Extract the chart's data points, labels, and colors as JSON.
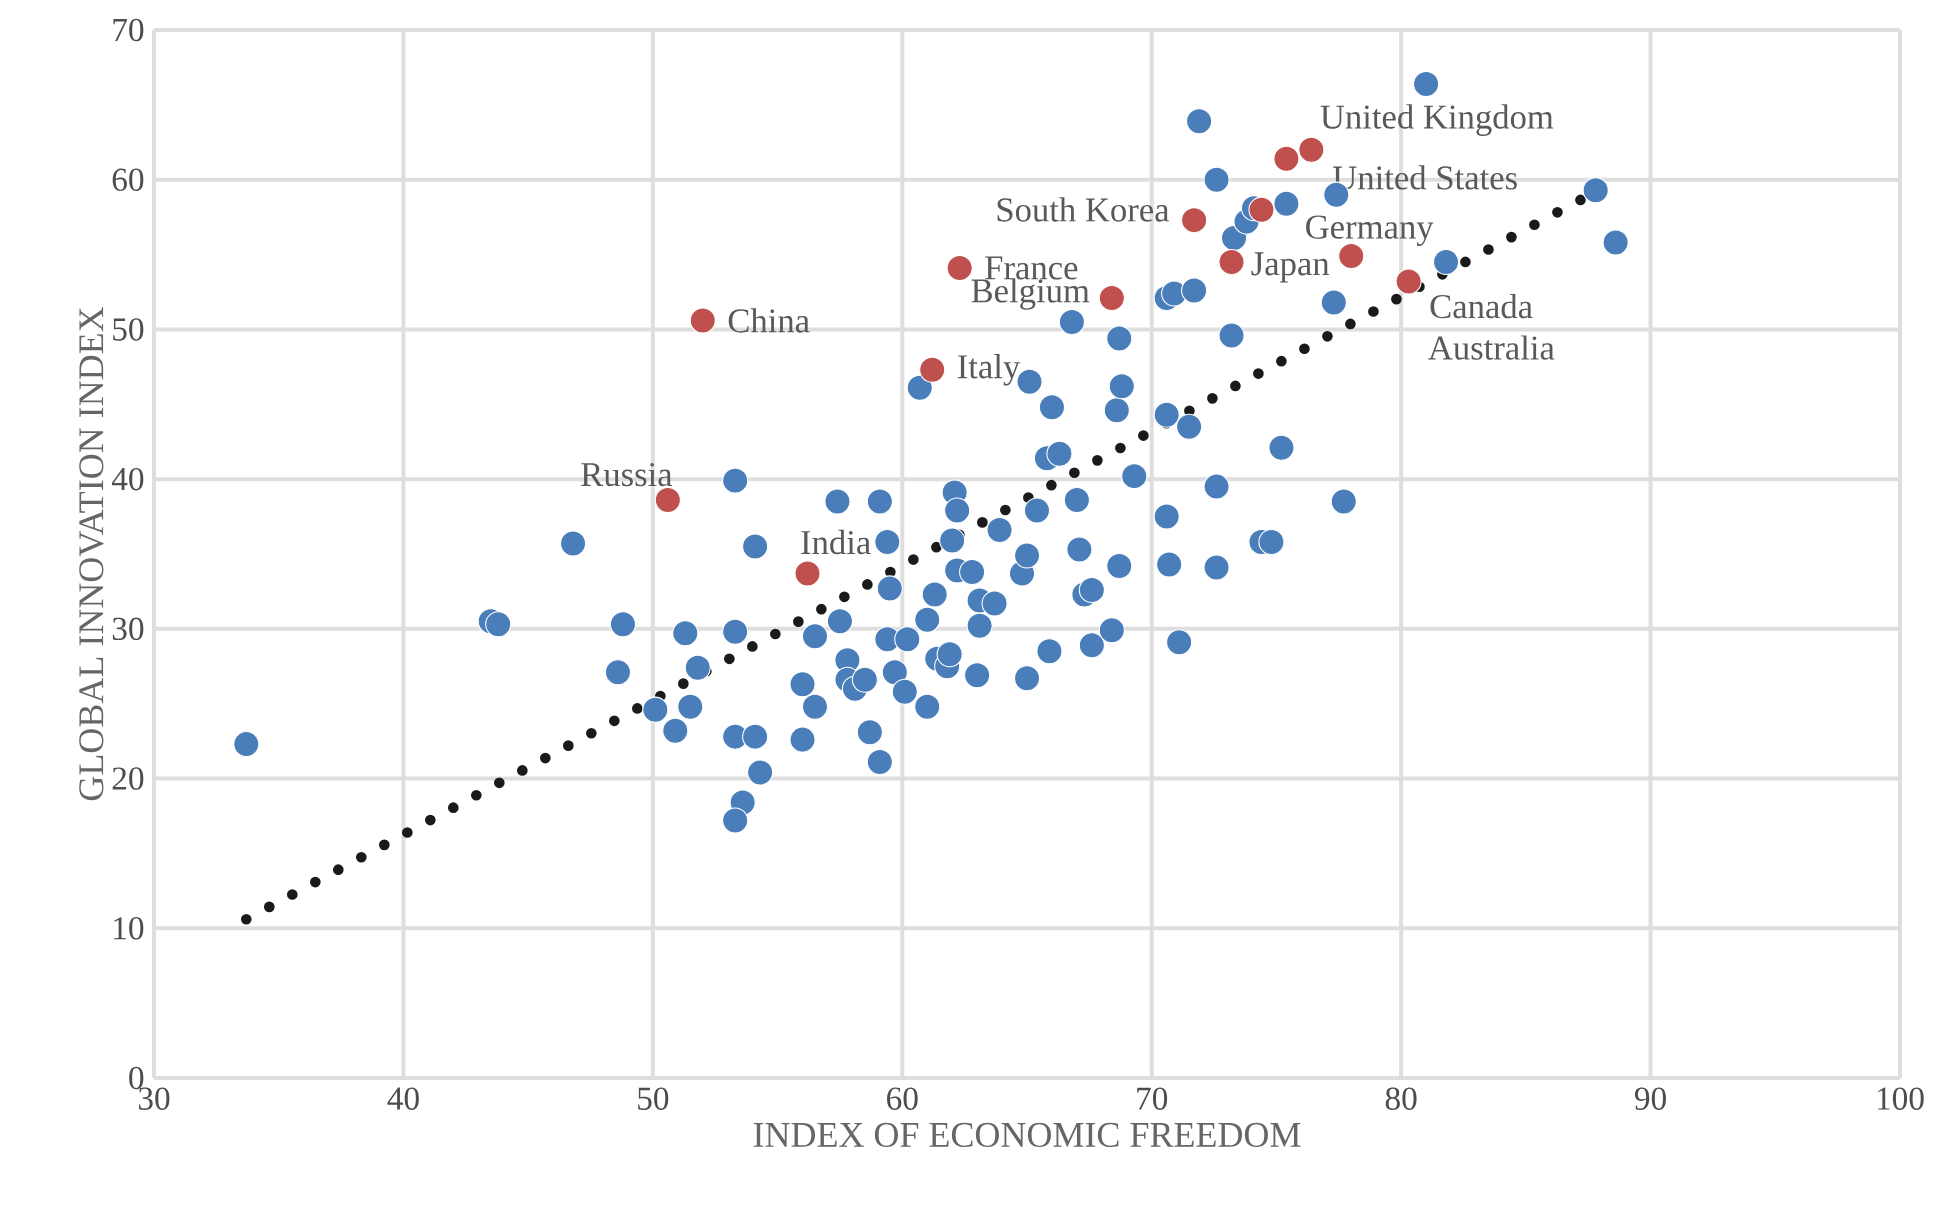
{
  "chart_data": {
    "type": "scatter",
    "xlabel": "INDEX OF ECONOMIC FREEDOM",
    "ylabel": "GLOBAL INNOVATION INDEX",
    "xlim": [
      30,
      100
    ],
    "ylim": [
      0,
      70
    ],
    "xticks": [
      30,
      40,
      50,
      60,
      70,
      80,
      90,
      100
    ],
    "yticks": [
      0,
      10,
      20,
      30,
      40,
      50,
      60,
      70
    ],
    "grid": true,
    "marker": "circle",
    "series": [
      {
        "color": "#4a7ebb",
        "x": [
          33.7,
          43.5,
          43.8,
          46.8,
          48.8,
          48.6,
          50.1,
          50.9,
          51.3,
          51.8,
          51.5,
          53.3,
          53.3,
          53.3,
          53.6,
          53.3,
          54.1,
          54.1,
          54.3,
          56.0,
          56.5,
          56.5,
          56.0,
          57.4,
          57.5,
          57.8,
          57.8,
          58.1,
          58.5,
          58.7,
          59.1,
          59.4,
          59.5,
          59.4,
          59.1,
          59.7,
          60.1,
          60.2,
          60.7,
          61.0,
          61.0,
          61.3,
          61.4,
          61.8,
          61.9,
          62.0,
          62.1,
          62.2,
          62.2,
          62.8,
          63.0,
          63.1,
          63.1,
          63.7,
          63.9,
          64.8,
          65.0,
          65.0,
          65.1,
          65.4,
          65.8,
          66.0,
          65.9,
          66.3,
          66.8,
          67.0,
          67.1,
          67.3,
          67.6,
          67.6,
          68.6,
          68.7,
          68.8,
          68.7,
          68.4,
          69.3,
          70.6,
          70.6,
          70.9,
          70.6,
          70.7,
          71.1,
          71.5,
          71.7,
          71.9,
          72.6,
          72.6,
          72.6,
          73.2,
          73.3,
          73.8,
          74.1,
          74.4,
          74.8,
          75.2,
          75.4,
          77.4,
          77.3,
          77.7,
          81.0,
          81.8,
          87.8,
          88.6
        ],
        "values": [
          22.3,
          30.5,
          30.3,
          35.7,
          30.3,
          27.1,
          24.6,
          23.2,
          29.7,
          27.4,
          24.8,
          39.9,
          29.8,
          22.8,
          18.4,
          17.2,
          35.5,
          22.8,
          20.4,
          26.3,
          29.5,
          24.8,
          22.6,
          38.5,
          30.5,
          27.9,
          26.6,
          26.0,
          26.6,
          23.1,
          38.5,
          35.8,
          32.7,
          29.3,
          21.1,
          27.1,
          25.8,
          29.3,
          46.1,
          24.8,
          30.6,
          32.3,
          28.0,
          27.5,
          28.3,
          35.9,
          39.1,
          37.9,
          33.9,
          33.8,
          26.9,
          30.2,
          31.9,
          31.7,
          36.6,
          33.7,
          34.9,
          26.7,
          46.5,
          37.9,
          41.4,
          44.8,
          28.5,
          41.7,
          50.5,
          38.6,
          35.3,
          32.3,
          32.6,
          28.9,
          44.6,
          49.4,
          46.2,
          34.2,
          29.9,
          40.2,
          44.3,
          52.1,
          52.4,
          37.5,
          34.3,
          29.1,
          43.5,
          52.6,
          63.9,
          60.0,
          39.5,
          34.1,
          49.6,
          56.1,
          57.2,
          58.1,
          35.8,
          35.8,
          42.1,
          58.4,
          59.0,
          51.8,
          38.5,
          66.4,
          54.5,
          59.3,
          55.8
        ]
      },
      {
        "color": "#c0504d",
        "x": [
          52.0,
          50.6,
          56.2,
          61.2,
          62.3,
          68.4,
          71.7,
          73.2,
          74.4,
          75.4,
          76.4,
          78.0,
          80.3
        ],
        "values": [
          50.6,
          38.6,
          33.7,
          47.3,
          54.1,
          52.1,
          57.3,
          54.5,
          58.0,
          61.4,
          62.0,
          54.9,
          53.2
        ]
      },
      {
        "type": "line",
        "color": "#1a1a1a",
        "line_style": "dotted",
        "marker": "none",
        "x": [
          33.7,
          87.8
        ],
        "values": [
          10.6,
          59.2
        ]
      }
    ],
    "annotations": [
      {
        "text": "China",
        "x": 52.0,
        "y": 50.6
      },
      {
        "text": "Russia",
        "x": 50.6,
        "y": 38.6
      },
      {
        "text": "India",
        "x": 56.2,
        "y": 33.7
      },
      {
        "text": "Italy",
        "x": 61.2,
        "y": 47.3
      },
      {
        "text": "France",
        "x": 62.3,
        "y": 54.1
      },
      {
        "text": "Belgium",
        "x": 68.4,
        "y": 52.1
      },
      {
        "text": "South Korea",
        "x": 71.7,
        "y": 57.3
      },
      {
        "text": "Japan",
        "x": 73.2,
        "y": 54.5
      },
      {
        "text": "Germany",
        "x": 74.4,
        "y": 58.0
      },
      {
        "text": "United States",
        "x": 75.4,
        "y": 61.4
      },
      {
        "text": "United Kingdom",
        "x": 76.4,
        "y": 62.0
      },
      {
        "text": "Canada",
        "x": 78.0,
        "y": 54.9
      },
      {
        "text": "Australia",
        "x": 80.3,
        "y": 53.2
      }
    ]
  }
}
